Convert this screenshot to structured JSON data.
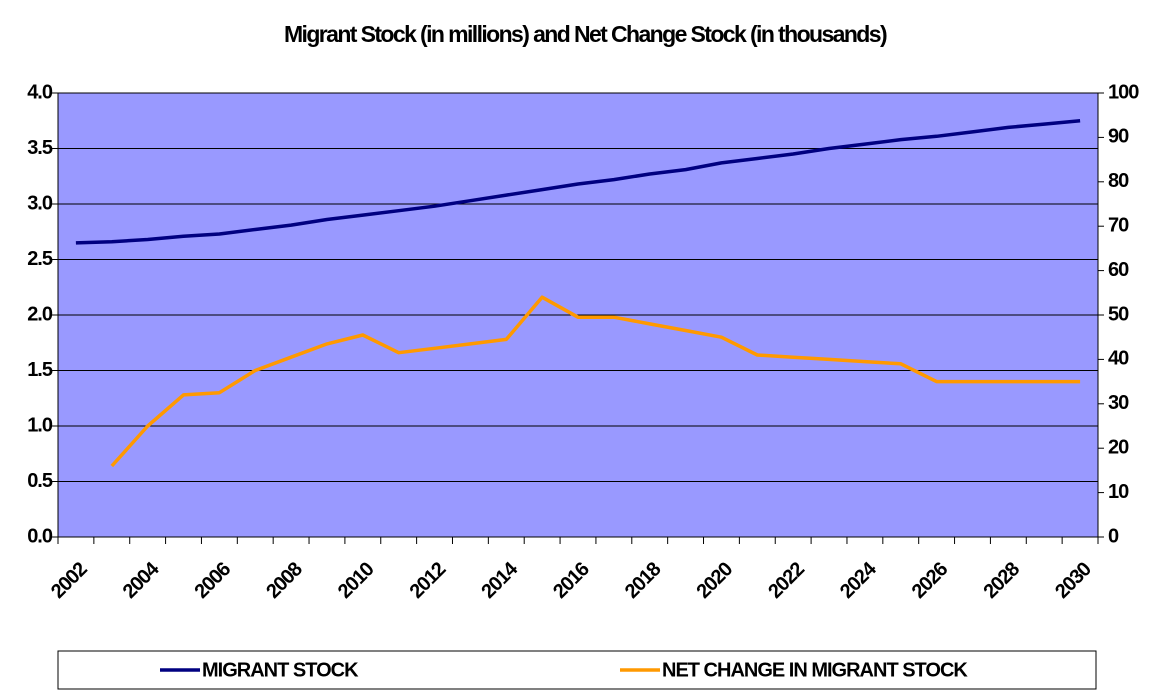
{
  "chart_data": {
    "type": "line",
    "title": "Migrant Stock (in millions) and Net Change Stock (in thousands)",
    "categories": [
      "2002",
      null,
      "2004",
      null,
      "2006",
      null,
      "2008",
      null,
      "2010",
      null,
      "2012",
      null,
      "2014",
      null,
      "2016",
      null,
      "2018",
      null,
      "2020",
      null,
      "2022",
      null,
      "2024",
      null,
      "2026",
      null,
      "2028",
      null,
      "2030"
    ],
    "series": [
      {
        "name": "MIGRANT STOCK",
        "color": "#000080",
        "values": [
          2.65,
          2.66,
          2.68,
          2.71,
          2.73,
          2.77,
          2.81,
          2.86,
          2.9,
          2.94,
          2.98,
          3.03,
          3.08,
          3.13,
          3.18,
          3.22,
          3.27,
          3.31,
          3.37,
          3.41,
          3.45,
          3.5,
          3.54,
          3.58,
          3.61,
          3.65,
          3.69,
          3.72,
          3.75
        ]
      },
      {
        "name": "NET CHANGE IN MIGRANT STOCK",
        "color": "#FF9900",
        "axis": "y2",
        "values": [
          null,
          16,
          25,
          32,
          32.5,
          37.5,
          40.5,
          43.5,
          45.5,
          41.5,
          42.5,
          43.5,
          44.5,
          54,
          49.5,
          49.5,
          48,
          46.5,
          45,
          41,
          40.5,
          40,
          39.5,
          39,
          35,
          35,
          35,
          35,
          35
        ]
      }
    ],
    "ylim": [
      0,
      4
    ],
    "yticks": [
      {
        "value": 0,
        "label": "0.0"
      },
      0.5,
      {
        "value": 1,
        "label": "1.0"
      },
      1.5,
      {
        "value": 2,
        "label": "2.0"
      },
      2.5,
      {
        "value": 3,
        "label": "3.0"
      },
      3.5,
      {
        "value": 4,
        "label": "4.0"
      }
    ],
    "y2lim": [
      0,
      100
    ],
    "y2ticks": [
      0,
      10,
      20,
      30,
      40,
      50,
      60,
      70,
      80,
      90,
      100
    ],
    "grid": true,
    "legend": "bottom",
    "plot_background": "#9999FF"
  }
}
